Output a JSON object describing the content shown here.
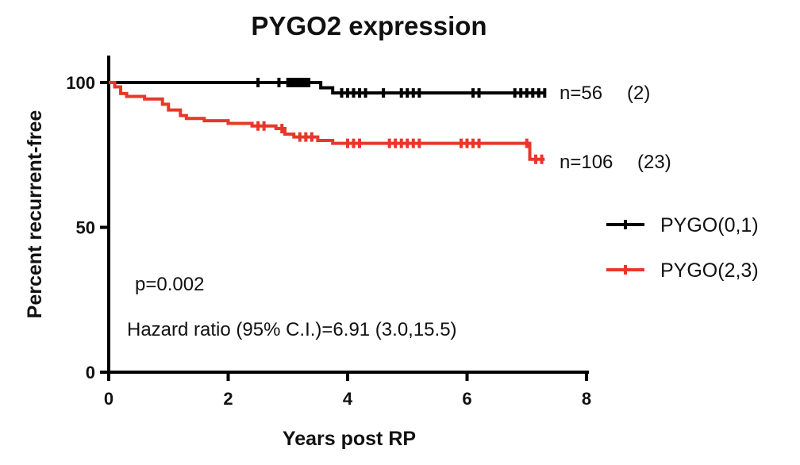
{
  "chart_data": {
    "type": "line",
    "subtype": "kaplan-meier",
    "title": "PYGO2 expression",
    "xlabel": "Years post RP",
    "ylabel": "Percent recurrent-free",
    "xlim": [
      0,
      8
    ],
    "ylim": [
      0,
      100
    ],
    "x_ticks": [
      "0",
      "2",
      "4",
      "6",
      "8"
    ],
    "y_ticks": [
      "0",
      "50",
      "100"
    ],
    "grid": false,
    "legend_position": "right",
    "series": [
      {
        "name": "PYGO(0,1)",
        "color": "#000000",
        "end_label": "n=56",
        "events_label": "(2)",
        "x": [
          0,
          3.55,
          3.75,
          7.3
        ],
        "y": [
          100,
          98.2,
          96.4,
          96.4
        ],
        "censor_x": [
          2.5,
          2.85,
          3.0,
          3.05,
          3.1,
          3.15,
          3.2,
          3.25,
          3.3,
          3.35,
          3.9,
          4.0,
          4.1,
          4.2,
          4.3,
          4.6,
          4.9,
          5.0,
          5.1,
          5.2,
          6.1,
          6.2,
          6.8,
          6.9,
          7.0,
          7.1,
          7.2,
          7.3
        ]
      },
      {
        "name": "PYGO(2,3)",
        "color": "#e8372a",
        "end_label": "n=106",
        "events_label": "(23)",
        "x": [
          0,
          0.1,
          0.2,
          0.3,
          0.6,
          0.9,
          1.0,
          1.2,
          1.3,
          1.6,
          2.0,
          2.4,
          2.8,
          2.95,
          3.1,
          3.5,
          3.75,
          7.05,
          7.3
        ],
        "y": [
          100,
          98.5,
          96.2,
          95.2,
          94.3,
          92.5,
          90.5,
          88.6,
          87.6,
          86.8,
          85.9,
          85.0,
          84.1,
          82.2,
          81.2,
          80.0,
          79.0,
          73.5,
          73.5
        ],
        "censor_x": [
          2.5,
          2.6,
          2.9,
          3.2,
          3.3,
          3.4,
          4.0,
          4.1,
          4.2,
          4.7,
          4.8,
          4.9,
          5.0,
          5.1,
          5.2,
          5.9,
          6.0,
          6.1,
          6.2,
          7.0,
          7.15,
          7.25
        ]
      }
    ],
    "annotations": {
      "p_value": "p=0.002",
      "hazard_ratio": "Hazard ratio (95% C.I.)=6.91 (3.0,15.5)"
    }
  }
}
